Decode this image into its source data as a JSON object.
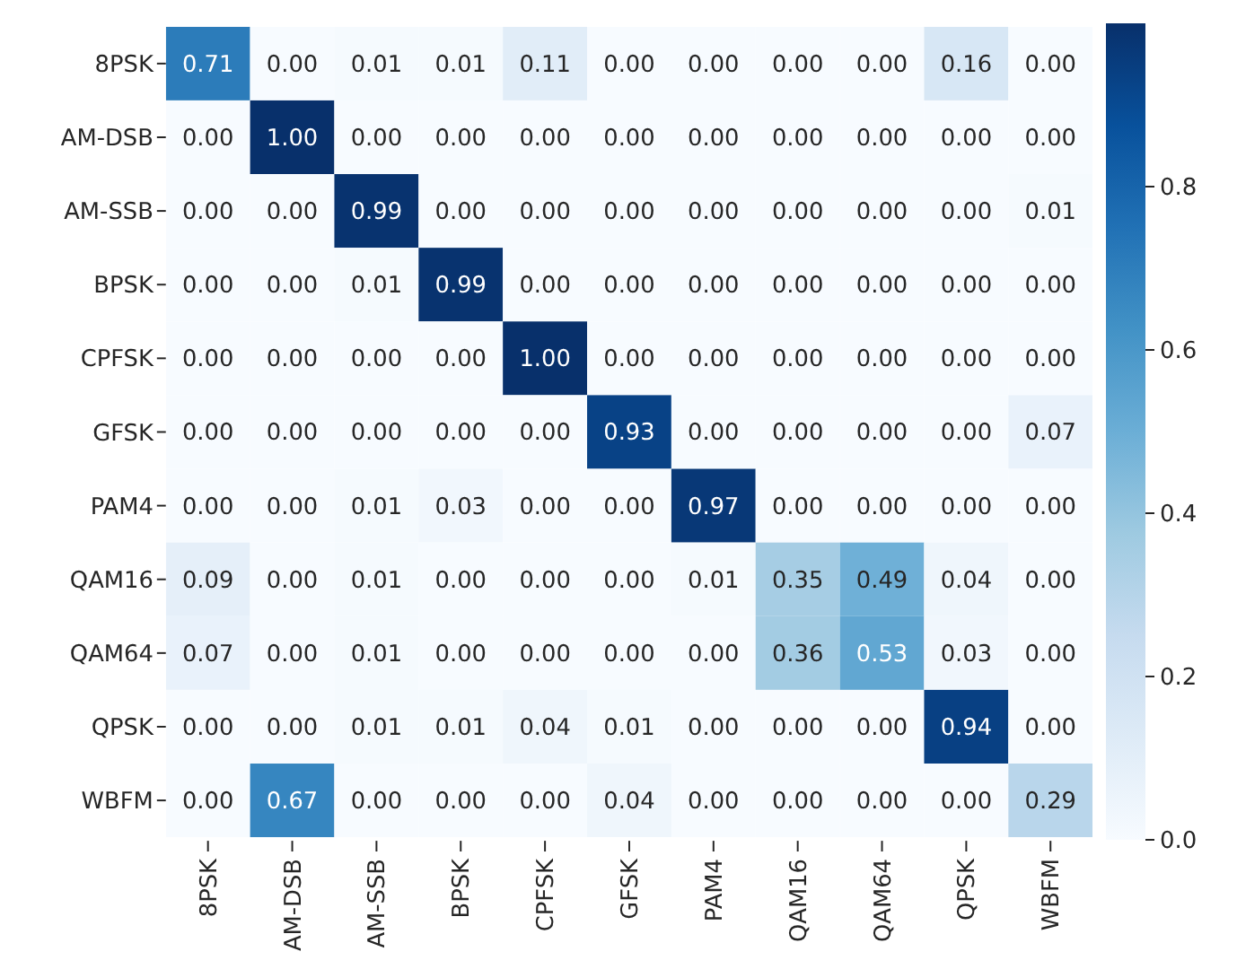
{
  "chart_data": {
    "type": "heatmap",
    "categories": [
      "8PSK",
      "AM-DSB",
      "AM-SSB",
      "BPSK",
      "CPFSK",
      "GFSK",
      "PAM4",
      "QAM16",
      "QAM64",
      "QPSK",
      "WBFM"
    ],
    "y_categories": [
      "8PSK",
      "AM-DSB",
      "AM-SSB",
      "BPSK",
      "CPFSK",
      "GFSK",
      "PAM4",
      "QAM16",
      "QAM64",
      "QPSK",
      "WBFM"
    ],
    "cells": [
      [
        0.71,
        0,
        0.01,
        0.01,
        0.11,
        0,
        0,
        0,
        0,
        0.16,
        0
      ],
      [
        0,
        1,
        0,
        0,
        0,
        0,
        0,
        0,
        0,
        0,
        0
      ],
      [
        0,
        0,
        0.99,
        0,
        0,
        0,
        0,
        0,
        0,
        0,
        0.01
      ],
      [
        0,
        0,
        0.01,
        0.99,
        0,
        0,
        0,
        0,
        0,
        0,
        0
      ],
      [
        0,
        0,
        0,
        0,
        1,
        0,
        0,
        0,
        0,
        0,
        0
      ],
      [
        0,
        0,
        0,
        0,
        0,
        0.93,
        0,
        0,
        0,
        0,
        0.07
      ],
      [
        0,
        0,
        0.01,
        0.03,
        0,
        0,
        0.97,
        0,
        0,
        0,
        0
      ],
      [
        0.09,
        0,
        0.01,
        0,
        0,
        0,
        0.01,
        0.35,
        0.49,
        0.04,
        0
      ],
      [
        0.07,
        0,
        0.01,
        0,
        0,
        0,
        0,
        0.36,
        0.53,
        0.03,
        0
      ],
      [
        0,
        0,
        0.01,
        0.01,
        0.04,
        0.01,
        0,
        0,
        0,
        0.94,
        0
      ],
      [
        0,
        0.67,
        0,
        0,
        0,
        0.04,
        0,
        0,
        0,
        0,
        0.29
      ]
    ],
    "cell_labels": [
      [
        "0.71",
        "0.00",
        "0.01",
        "0.01",
        "0.11",
        "0.00",
        "0.00",
        "0.00",
        "0.00",
        "0.16",
        "0.00"
      ],
      [
        "0.00",
        "1.00",
        "0.00",
        "0.00",
        "0.00",
        "0.00",
        "0.00",
        "0.00",
        "0.00",
        "0.00",
        "0.00"
      ],
      [
        "0.00",
        "0.00",
        "0.99",
        "0.00",
        "0.00",
        "0.00",
        "0.00",
        "0.00",
        "0.00",
        "0.00",
        "0.01"
      ],
      [
        "0.00",
        "0.00",
        "0.01",
        "0.99",
        "0.00",
        "0.00",
        "0.00",
        "0.00",
        "0.00",
        "0.00",
        "0.00"
      ],
      [
        "0.00",
        "0.00",
        "0.00",
        "0.00",
        "1.00",
        "0.00",
        "0.00",
        "0.00",
        "0.00",
        "0.00",
        "0.00"
      ],
      [
        "0.00",
        "0.00",
        "0.00",
        "0.00",
        "0.00",
        "0.93",
        "0.00",
        "0.00",
        "0.00",
        "0.00",
        "0.07"
      ],
      [
        "0.00",
        "0.00",
        "0.01",
        "0.03",
        "0.00",
        "0.00",
        "0.97",
        "0.00",
        "0.00",
        "0.00",
        "0.00"
      ],
      [
        "0.09",
        "0.00",
        "0.01",
        "0.00",
        "0.00",
        "0.00",
        "0.01",
        "0.35",
        "0.49",
        "0.04",
        "0.00"
      ],
      [
        "0.07",
        "0.00",
        "0.01",
        "0.00",
        "0.00",
        "0.00",
        "0.00",
        "0.36",
        "0.53",
        "0.03",
        "0.00"
      ],
      [
        "0.00",
        "0.00",
        "0.01",
        "0.01",
        "0.04",
        "0.01",
        "0.00",
        "0.00",
        "0.00",
        "0.94",
        "0.00"
      ],
      [
        "0.00",
        "0.67",
        "0.00",
        "0.00",
        "0.00",
        "0.04",
        "0.00",
        "0.00",
        "0.00",
        "0.00",
        "0.29"
      ]
    ],
    "clim": [
      0,
      1
    ],
    "cticks": [
      {
        "value": 0,
        "label": "0.0"
      },
      {
        "value": 0.2,
        "label": "0.2"
      },
      {
        "value": 0.4,
        "label": "0.4"
      },
      {
        "value": 0.6,
        "label": "0.6"
      },
      {
        "value": 0.8,
        "label": "0.8"
      }
    ]
  }
}
